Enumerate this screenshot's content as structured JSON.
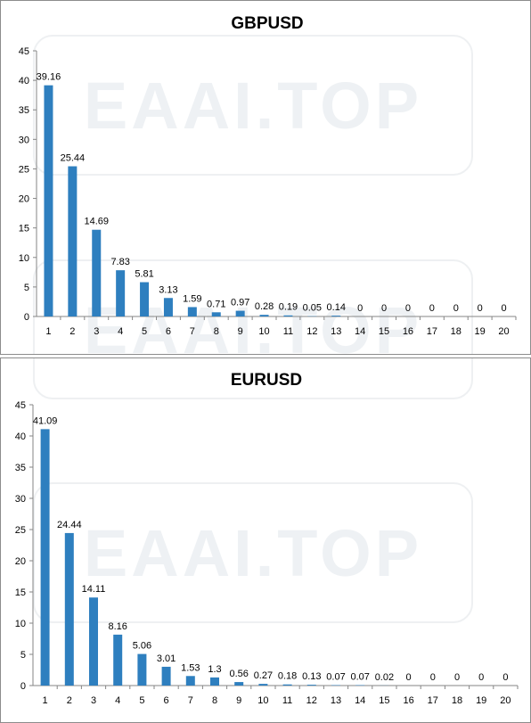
{
  "watermark": "EAAI.TOP",
  "colors": {
    "bar": "#2e7fbf",
    "axis": "#868686"
  },
  "chart_data": [
    {
      "type": "bar",
      "title": "GBPUSD",
      "categories": [
        "1",
        "2",
        "3",
        "4",
        "5",
        "6",
        "7",
        "8",
        "9",
        "10",
        "11",
        "12",
        "13",
        "14",
        "15",
        "16",
        "17",
        "18",
        "19",
        "20"
      ],
      "values": [
        39.16,
        25.44,
        14.69,
        7.83,
        5.81,
        3.13,
        1.59,
        0.71,
        0.97,
        0.28,
        0.19,
        0.05,
        0.14,
        0,
        0,
        0,
        0,
        0,
        0,
        0
      ],
      "yticks": [
        "0",
        "5",
        "10",
        "15",
        "20",
        "25",
        "30",
        "35",
        "40",
        "45"
      ],
      "ylim": [
        0,
        45
      ],
      "xlabel": "",
      "ylabel": "",
      "grid": false,
      "legend": "none"
    },
    {
      "type": "bar",
      "title": "EURUSD",
      "categories": [
        "1",
        "2",
        "3",
        "4",
        "5",
        "6",
        "7",
        "8",
        "9",
        "10",
        "11",
        "12",
        "13",
        "14",
        "15",
        "16",
        "17",
        "18",
        "19",
        "20"
      ],
      "values": [
        41.09,
        24.44,
        14.11,
        8.16,
        5.06,
        3.01,
        1.53,
        1.3,
        0.56,
        0.27,
        0.18,
        0.13,
        0.07,
        0.07,
        0.02,
        0,
        0,
        0,
        0,
        0
      ],
      "yticks": [
        "0",
        "5",
        "10",
        "15",
        "20",
        "25",
        "30",
        "35",
        "40",
        "45"
      ],
      "ylim": [
        0,
        45
      ],
      "xlabel": "",
      "ylabel": "",
      "grid": false,
      "legend": "none"
    }
  ]
}
